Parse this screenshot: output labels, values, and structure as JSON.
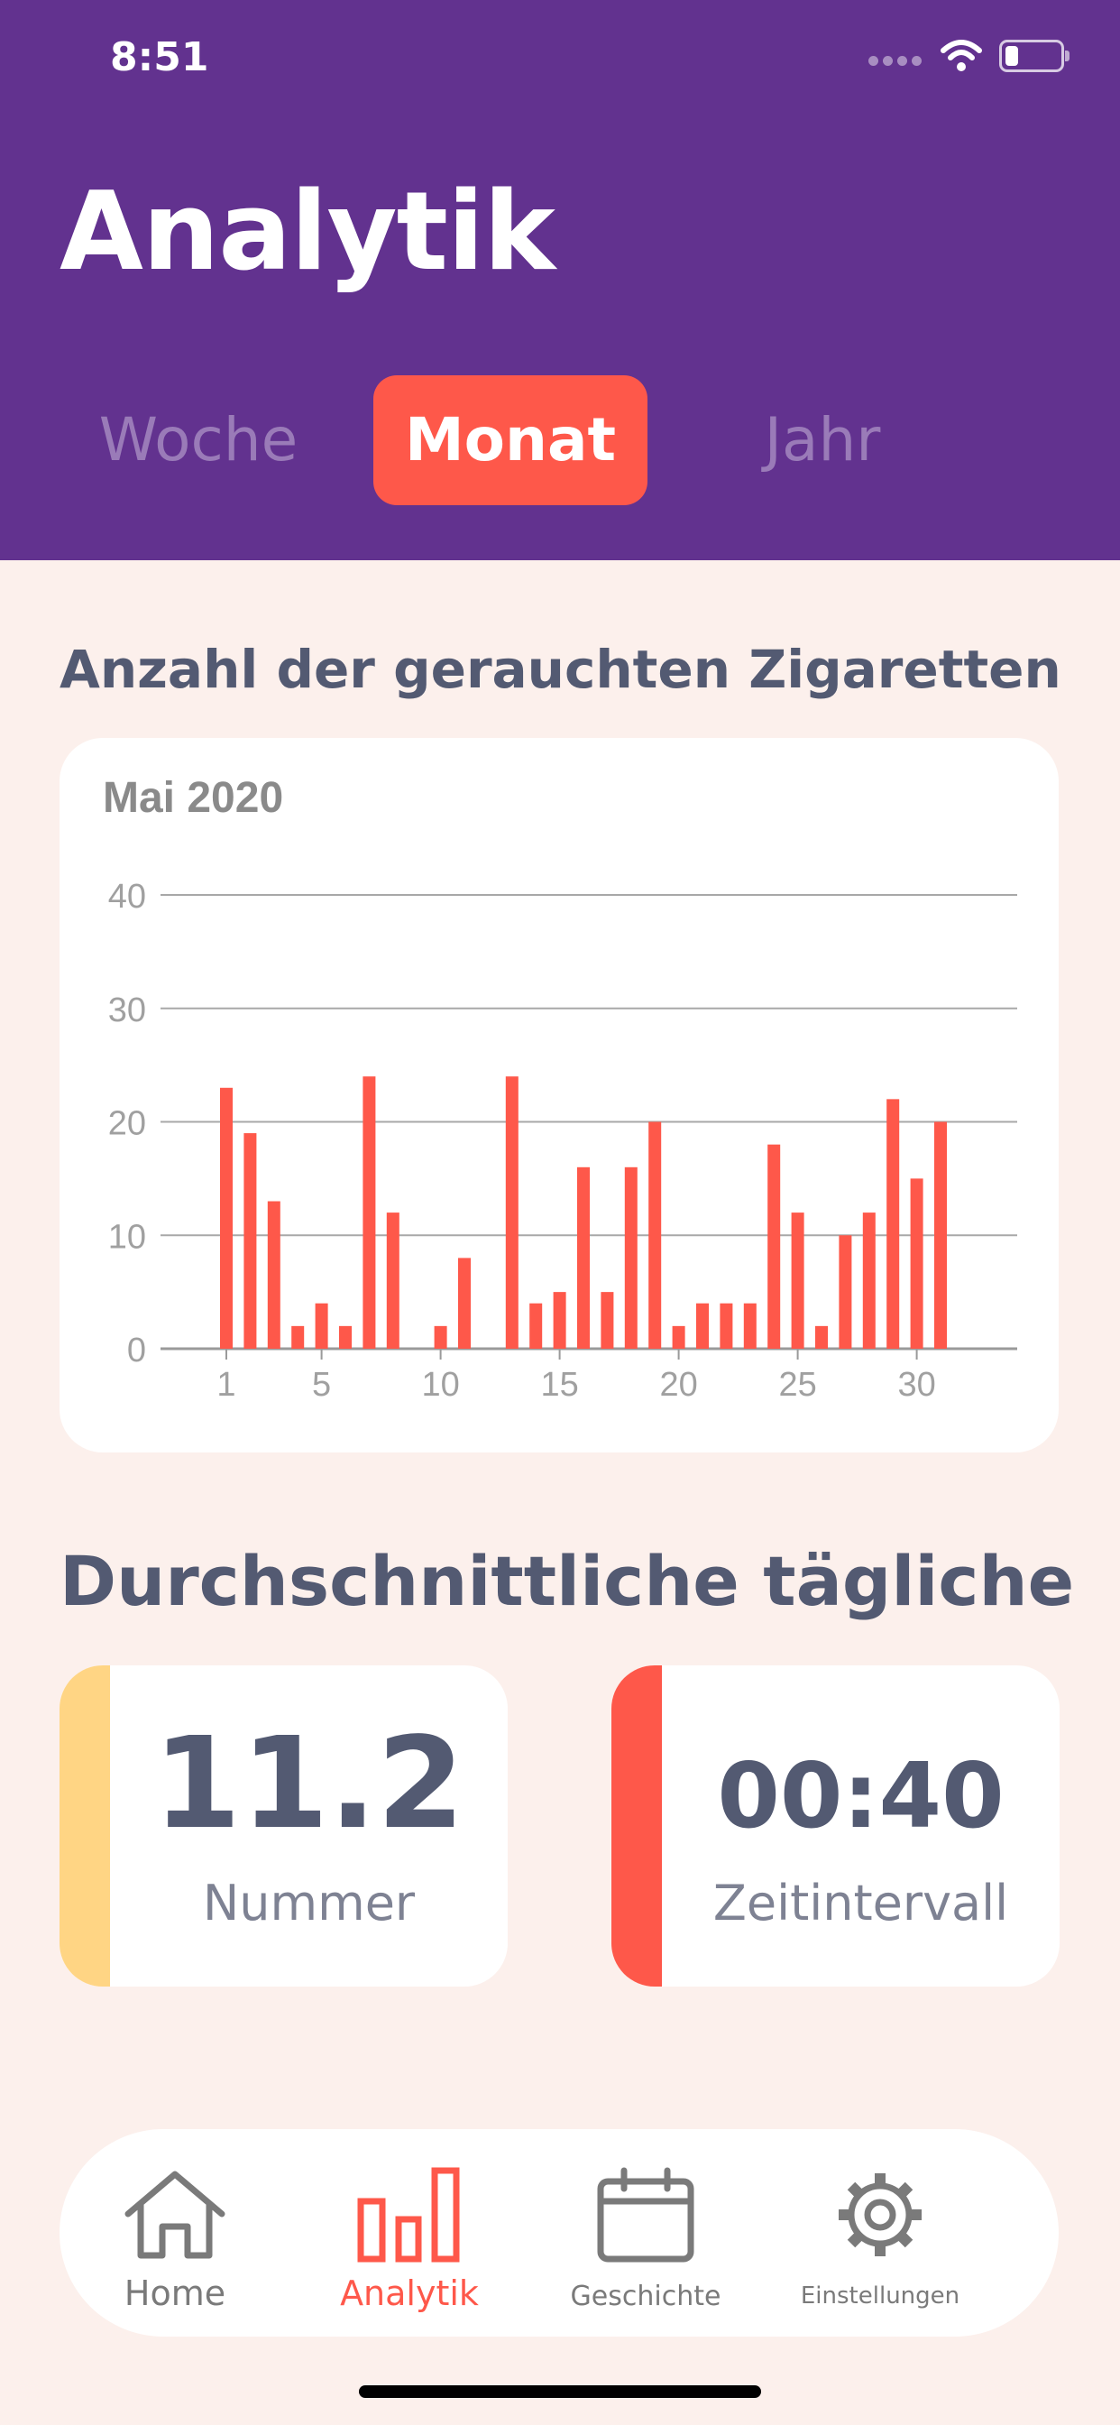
{
  "status_bar": {
    "time": "8:51"
  },
  "header": {
    "title": "Analytik",
    "tabs": [
      {
        "label": "Woche",
        "active": false
      },
      {
        "label": "Monat",
        "active": true
      },
      {
        "label": "Jahr",
        "active": false
      }
    ]
  },
  "section_chart_title": "Anzahl der gerauchten Zigaretten",
  "chart_data": {
    "type": "bar",
    "title": "Mai 2020",
    "xlabel": "",
    "ylabel": "",
    "categories": [
      1,
      2,
      3,
      4,
      5,
      6,
      7,
      8,
      9,
      10,
      11,
      12,
      13,
      14,
      15,
      16,
      17,
      18,
      19,
      20,
      21,
      22,
      23,
      24,
      25,
      26,
      27,
      28,
      29,
      30,
      31
    ],
    "values": [
      23,
      19,
      13,
      2,
      4,
      2,
      24,
      12,
      0,
      2,
      8,
      0,
      24,
      4,
      5,
      16,
      5,
      16,
      20,
      2,
      4,
      4,
      4,
      18,
      12,
      2,
      10,
      12,
      22,
      15,
      20
    ],
    "ylim": [
      0,
      40
    ],
    "yticks": [
      0,
      10,
      20,
      30,
      40
    ],
    "xticks": [
      1,
      5,
      10,
      15,
      20,
      25,
      30
    ],
    "grid": true,
    "bar_color": "#fe584a"
  },
  "section_avg_title": "Durchschnittliche tägliche",
  "stats": [
    {
      "value": "11.2",
      "label": "Nummer",
      "accent": "#ffd584"
    },
    {
      "value": "00:40",
      "label": "Zeitintervall",
      "accent": "#fe584a"
    }
  ],
  "nav": {
    "items": [
      {
        "label": "Home",
        "icon": "home-icon",
        "active": false
      },
      {
        "label": "Analytik",
        "icon": "bar-chart-icon",
        "active": true
      },
      {
        "label": "Geschichte",
        "icon": "calendar-icon",
        "active": false
      },
      {
        "label": "Einstellungen",
        "icon": "gear-icon",
        "active": false
      }
    ]
  },
  "colors": {
    "header": "#62328f",
    "accent": "#fe584a",
    "text": "#535a72",
    "background": "#fcf0ec"
  }
}
